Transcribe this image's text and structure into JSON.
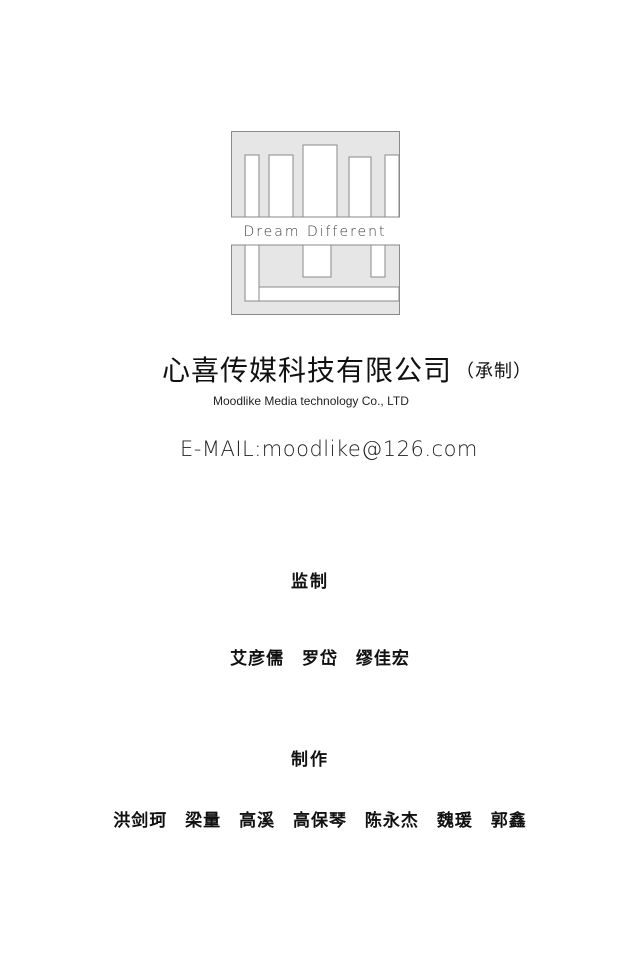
{
  "logo": {
    "tagline": "Dream Different"
  },
  "company": {
    "name_cn": "心喜传媒科技有限公司",
    "role": "（承制）",
    "name_en": "Moodlike Media technology Co., LTD",
    "email": "E-MAIL:moodlike@126.com"
  },
  "supervision": {
    "heading": "监制",
    "names": [
      "艾彦儒",
      "罗岱",
      "缪佳宏"
    ]
  },
  "production": {
    "heading": "制作",
    "names": [
      "洪剑珂",
      "梁量",
      "高溪",
      "高保琴",
      "陈永杰",
      "魏瑗",
      "郭鑫"
    ]
  },
  "colors": {
    "logo_fill": "#e6e6e6",
    "logo_stroke": "#8a8a8a",
    "text": "#111111"
  }
}
